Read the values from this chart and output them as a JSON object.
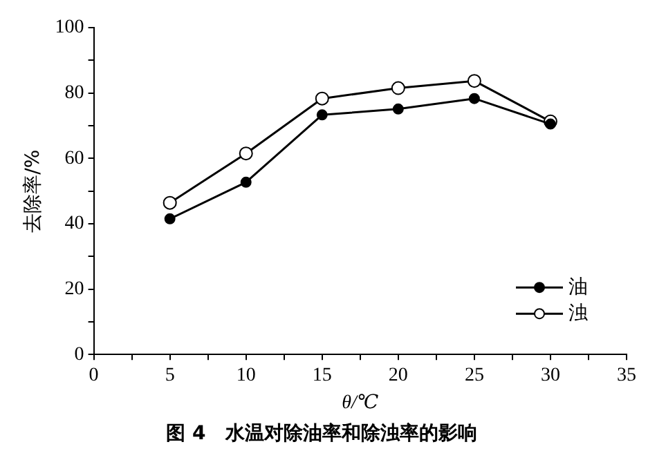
{
  "chart_data": {
    "type": "line",
    "title": "图 4　水温对除油率和除浊率的影响",
    "xlabel": "θ/℃",
    "ylabel": "去除率/%",
    "x": [
      5,
      10,
      15,
      20,
      25,
      30
    ],
    "series": [
      {
        "name": "油",
        "color": "#000000",
        "values": [
          41.5,
          52.7,
          73.3,
          75.1,
          78.3,
          70.5
        ]
      },
      {
        "name": "浊",
        "color": "#000000",
        "values": [
          46.4,
          61.5,
          78.3,
          81.5,
          83.7,
          71.3
        ]
      }
    ],
    "xlim": [
      0,
      35
    ],
    "xticks": [
      0,
      {
        "value": 2.5,
        "label": null
      },
      5,
      {
        "value": 7.5,
        "label": null
      },
      10,
      {
        "value": 12.5,
        "label": null
      },
      15,
      {
        "value": 17.5,
        "label": null
      },
      20,
      {
        "value": 22.5,
        "label": null
      },
      25,
      {
        "value": 27.5,
        "label": null
      },
      30,
      {
        "value": 32.5,
        "label": null
      },
      35
    ],
    "ylim": [
      0,
      100
    ],
    "yticks": [
      0,
      {
        "value": 10,
        "label": null
      },
      20,
      {
        "value": 30,
        "label": null
      },
      40,
      {
        "value": 50,
        "label": null
      },
      60,
      {
        "value": 70,
        "label": null
      },
      80,
      {
        "value": 90,
        "label": null
      },
      100
    ],
    "grid": false,
    "legend": "bottom right",
    "marker": "circle",
    "line_style": "solid"
  }
}
